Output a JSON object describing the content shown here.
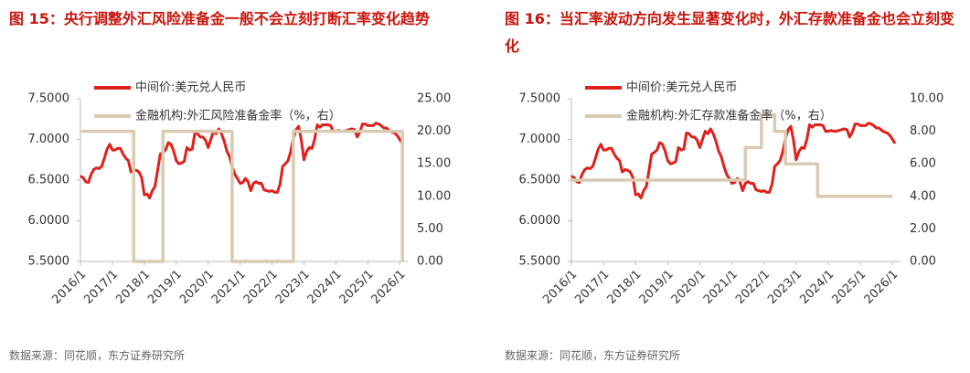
{
  "chart_data": [
    {
      "type": "line",
      "title": "图 15：央行调整外汇风险准备金一般不会立刻打断汇率变化趋势",
      "source": "数据来源：同花顺，东方证券研究所",
      "xlim": [
        "2016/1",
        "2026/4"
      ],
      "xticks": [
        "2016/1",
        "2017/1",
        "2018/1",
        "2019/1",
        "2020/1",
        "2021/1",
        "2022/1",
        "2023/1",
        "2024/1",
        "2025/1",
        "2026/1"
      ],
      "ylim": [
        5.5,
        7.5
      ],
      "yticks": [
        {
          "value": 5.5,
          "label": "5.5000"
        },
        {
          "value": 6.0,
          "label": "6.0000"
        },
        {
          "value": 6.5,
          "label": "6.5000"
        },
        {
          "value": 7.0,
          "label": "7.0000"
        },
        {
          "value": 7.5,
          "label": "7.5000"
        }
      ],
      "y2lim": [
        0,
        25
      ],
      "y2ticks": [
        {
          "value": 0,
          "label": "0.00"
        },
        {
          "value": 5,
          "label": "5.00"
        },
        {
          "value": 10,
          "label": "10.00"
        },
        {
          "value": 15,
          "label": "15.00"
        },
        {
          "value": 20,
          "label": "20.00"
        },
        {
          "value": 25,
          "label": "25.00"
        }
      ],
      "series": [
        {
          "name": "中间价:美元兑人民币",
          "color": "#e0201b",
          "x": [
            "2016/1",
            "2016/2",
            "2016/3",
            "2016/4",
            "2016/5",
            "2016/6",
            "2016/7",
            "2016/8",
            "2016/9",
            "2016/10",
            "2016/11",
            "2016/12",
            "2017/1",
            "2017/2",
            "2017/3",
            "2017/4",
            "2017/5",
            "2017/6",
            "2017/7",
            "2017/8",
            "2017/9",
            "2017/10",
            "2017/11",
            "2017/12",
            "2018/1",
            "2018/2",
            "2018/3",
            "2018/4",
            "2018/5",
            "2018/6",
            "2018/7",
            "2018/8",
            "2018/9",
            "2018/10",
            "2018/11",
            "2018/12",
            "2019/1",
            "2019/2",
            "2019/3",
            "2019/4",
            "2019/5",
            "2019/6",
            "2019/7",
            "2019/8",
            "2019/9",
            "2019/10",
            "2019/11",
            "2019/12",
            "2020/1",
            "2020/2",
            "2020/3",
            "2020/4",
            "2020/5",
            "2020/6",
            "2020/7",
            "2020/8",
            "2020/9",
            "2020/10",
            "2020/11",
            "2020/12",
            "2021/1",
            "2021/2",
            "2021/3",
            "2021/4",
            "2021/5",
            "2021/6",
            "2021/7",
            "2021/8",
            "2021/9",
            "2021/10",
            "2021/11",
            "2021/12",
            "2022/1",
            "2022/2",
            "2022/3",
            "2022/4",
            "2022/5",
            "2022/6",
            "2022/7",
            "2022/8",
            "2022/9",
            "2022/10",
            "2022/11",
            "2022/12",
            "2023/1",
            "2023/2",
            "2023/3",
            "2023/4",
            "2023/5",
            "2023/6",
            "2023/7",
            "2023/8",
            "2023/9",
            "2023/10",
            "2023/11",
            "2023/12",
            "2024/1",
            "2024/2",
            "2024/3",
            "2024/4",
            "2024/5",
            "2024/6",
            "2024/7",
            "2024/8",
            "2024/9",
            "2024/10",
            "2024/11",
            "2024/12",
            "2025/1",
            "2025/2",
            "2025/3",
            "2025/4",
            "2025/5",
            "2025/6",
            "2025/7",
            "2025/8",
            "2025/9",
            "2025/10",
            "2025/11",
            "2025/12",
            "2026/1",
            "2026/2"
          ],
          "values": [
            6.55,
            6.53,
            6.48,
            6.47,
            6.57,
            6.63,
            6.65,
            6.64,
            6.67,
            6.77,
            6.88,
            6.94,
            6.87,
            6.87,
            6.89,
            6.89,
            6.82,
            6.77,
            6.74,
            6.6,
            6.63,
            6.62,
            6.6,
            6.53,
            6.32,
            6.33,
            6.28,
            6.37,
            6.42,
            6.62,
            6.82,
            6.84,
            6.87,
            6.96,
            6.94,
            6.86,
            6.74,
            6.7,
            6.71,
            6.73,
            6.9,
            6.87,
            6.88,
            7.08,
            7.07,
            7.03,
            7.03,
            6.99,
            6.9,
            7.0,
            7.1,
            7.07,
            7.13,
            7.07,
            6.98,
            6.86,
            6.79,
            6.67,
            6.57,
            6.52,
            6.46,
            6.47,
            6.52,
            6.48,
            6.37,
            6.46,
            6.48,
            6.46,
            6.46,
            6.38,
            6.37,
            6.36,
            6.37,
            6.35,
            6.35,
            6.45,
            6.67,
            6.7,
            6.74,
            6.85,
            7.01,
            7.12,
            7.16,
            6.99,
            6.75,
            6.85,
            6.9,
            6.89,
            7.0,
            7.18,
            7.15,
            7.18,
            7.18,
            7.18,
            7.17,
            7.1,
            7.1,
            7.11,
            7.1,
            7.1,
            7.11,
            7.12,
            7.13,
            7.12,
            7.03,
            7.09,
            7.19,
            7.19,
            7.17,
            7.17,
            7.17,
            7.2,
            7.19,
            7.17,
            7.14,
            7.14,
            7.11,
            7.09,
            7.08,
            7.05,
            7.0,
            6.95
          ]
        },
        {
          "name": "金融机构:外汇风险准备金率（%，右）",
          "color": "#d9cbb2",
          "axis": "y2",
          "drawstyle": "steps-post",
          "x": [
            "2016/1",
            "2017/9",
            "2018/8",
            "2020/10",
            "2022/9",
            "2026/2"
          ],
          "values": [
            20,
            0,
            20,
            0,
            20,
            0
          ]
        }
      ]
    },
    {
      "type": "line",
      "title": "图 16：当汇率波动方向发生显著变化时，外汇存款准备金也会立刻变化",
      "source": "数据来源：同花顺，东方证券研究所",
      "xlim": [
        "2016/1",
        "2026/4"
      ],
      "xticks": [
        "2016/1",
        "2017/1",
        "2018/1",
        "2019/1",
        "2020/1",
        "2021/1",
        "2022/1",
        "2023/1",
        "2024/1",
        "2025/1",
        "2026/1"
      ],
      "ylim": [
        5.5,
        7.5
      ],
      "yticks": [
        {
          "value": 5.5,
          "label": "5.5000"
        },
        {
          "value": 6.0,
          "label": "6.0000"
        },
        {
          "value": 6.5,
          "label": "6.5000"
        },
        {
          "value": 7.0,
          "label": "7.0000"
        },
        {
          "value": 7.5,
          "label": "7.5000"
        }
      ],
      "y2lim": [
        0,
        10
      ],
      "y2ticks": [
        {
          "value": 0,
          "label": "0.00"
        },
        {
          "value": 2,
          "label": "2.00"
        },
        {
          "value": 4,
          "label": "4.00"
        },
        {
          "value": 6,
          "label": "6.00"
        },
        {
          "value": 8,
          "label": "8.00"
        },
        {
          "value": 10,
          "label": "10.00"
        }
      ],
      "series": [
        {
          "name": "中间价:美元兑人民币",
          "color": "#e0201b",
          "x": [
            "2016/1",
            "2016/2",
            "2016/3",
            "2016/4",
            "2016/5",
            "2016/6",
            "2016/7",
            "2016/8",
            "2016/9",
            "2016/10",
            "2016/11",
            "2016/12",
            "2017/1",
            "2017/2",
            "2017/3",
            "2017/4",
            "2017/5",
            "2017/6",
            "2017/7",
            "2017/8",
            "2017/9",
            "2017/10",
            "2017/11",
            "2017/12",
            "2018/1",
            "2018/2",
            "2018/3",
            "2018/4",
            "2018/5",
            "2018/6",
            "2018/7",
            "2018/8",
            "2018/9",
            "2018/10",
            "2018/11",
            "2018/12",
            "2019/1",
            "2019/2",
            "2019/3",
            "2019/4",
            "2019/5",
            "2019/6",
            "2019/7",
            "2019/8",
            "2019/9",
            "2019/10",
            "2019/11",
            "2019/12",
            "2020/1",
            "2020/2",
            "2020/3",
            "2020/4",
            "2020/5",
            "2020/6",
            "2020/7",
            "2020/8",
            "2020/9",
            "2020/10",
            "2020/11",
            "2020/12",
            "2021/1",
            "2021/2",
            "2021/3",
            "2021/4",
            "2021/5",
            "2021/6",
            "2021/7",
            "2021/8",
            "2021/9",
            "2021/10",
            "2021/11",
            "2021/12",
            "2022/1",
            "2022/2",
            "2022/3",
            "2022/4",
            "2022/5",
            "2022/6",
            "2022/7",
            "2022/8",
            "2022/9",
            "2022/10",
            "2022/11",
            "2022/12",
            "2023/1",
            "2023/2",
            "2023/3",
            "2023/4",
            "2023/5",
            "2023/6",
            "2023/7",
            "2023/8",
            "2023/9",
            "2023/10",
            "2023/11",
            "2023/12",
            "2024/1",
            "2024/2",
            "2024/3",
            "2024/4",
            "2024/5",
            "2024/6",
            "2024/7",
            "2024/8",
            "2024/9",
            "2024/10",
            "2024/11",
            "2024/12",
            "2025/1",
            "2025/2",
            "2025/3",
            "2025/4",
            "2025/5",
            "2025/6",
            "2025/7",
            "2025/8",
            "2025/9",
            "2025/10",
            "2025/11",
            "2025/12",
            "2026/1",
            "2026/2"
          ],
          "values": [
            6.55,
            6.53,
            6.48,
            6.47,
            6.57,
            6.63,
            6.65,
            6.64,
            6.67,
            6.77,
            6.88,
            6.94,
            6.87,
            6.87,
            6.89,
            6.89,
            6.82,
            6.77,
            6.74,
            6.6,
            6.63,
            6.62,
            6.6,
            6.53,
            6.32,
            6.33,
            6.28,
            6.37,
            6.42,
            6.62,
            6.82,
            6.84,
            6.87,
            6.96,
            6.94,
            6.86,
            6.74,
            6.7,
            6.71,
            6.73,
            6.9,
            6.87,
            6.88,
            7.08,
            7.07,
            7.03,
            7.03,
            6.99,
            6.9,
            7.0,
            7.1,
            7.07,
            7.13,
            7.07,
            6.98,
            6.86,
            6.79,
            6.67,
            6.57,
            6.52,
            6.46,
            6.47,
            6.52,
            6.48,
            6.37,
            6.46,
            6.48,
            6.46,
            6.46,
            6.38,
            6.37,
            6.36,
            6.37,
            6.35,
            6.35,
            6.45,
            6.67,
            6.7,
            6.74,
            6.85,
            7.01,
            7.12,
            7.16,
            6.99,
            6.75,
            6.85,
            6.9,
            6.89,
            7.0,
            7.18,
            7.15,
            7.18,
            7.18,
            7.18,
            7.17,
            7.1,
            7.1,
            7.11,
            7.1,
            7.1,
            7.11,
            7.12,
            7.13,
            7.12,
            7.03,
            7.09,
            7.19,
            7.19,
            7.17,
            7.17,
            7.17,
            7.2,
            7.19,
            7.17,
            7.14,
            7.14,
            7.11,
            7.09,
            7.08,
            7.05,
            7.0,
            6.95
          ]
        },
        {
          "name": "金融机构:外汇存款准备金率（%，右）",
          "color": "#d9cbb2",
          "axis": "y2",
          "drawstyle": "steps-post",
          "x": [
            "2016/1",
            "2021/6",
            "2021/12",
            "2022/5",
            "2022/9",
            "2023/9",
            "2026/1"
          ],
          "values": [
            5,
            7,
            9,
            8,
            6,
            4,
            4
          ]
        }
      ]
    }
  ]
}
